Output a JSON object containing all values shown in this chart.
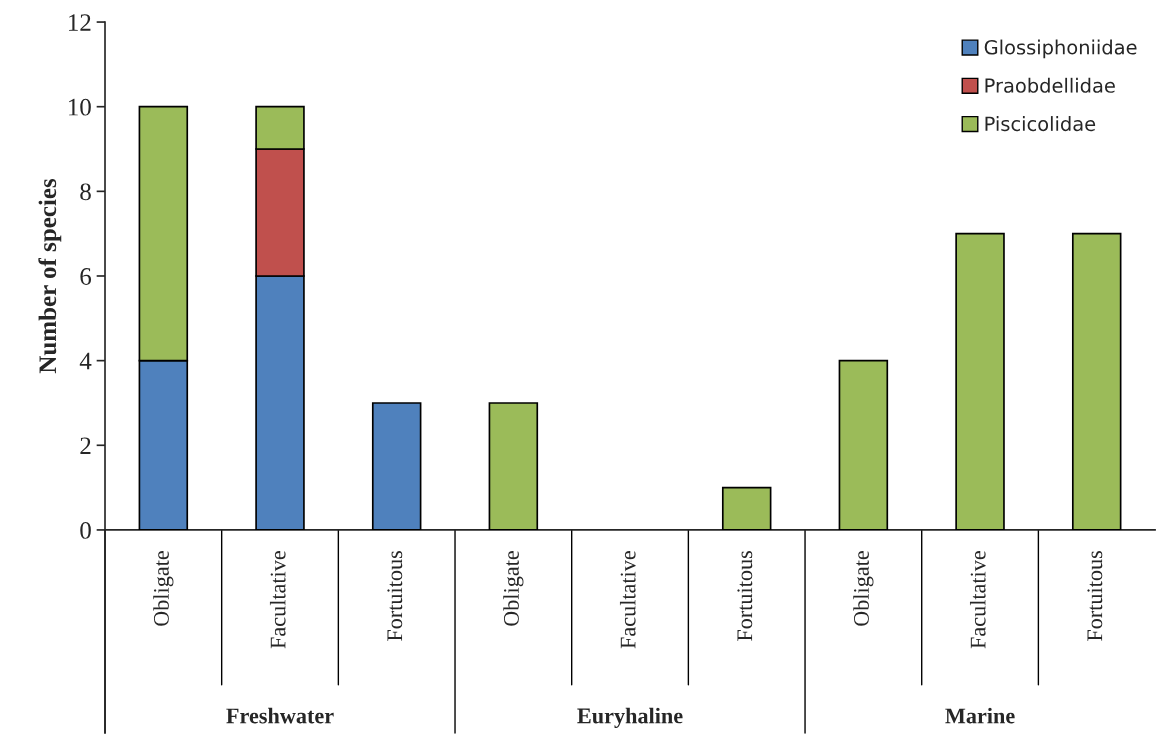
{
  "chart_data": {
    "type": "bar",
    "stacked": true,
    "ylabel": "Number of species",
    "categories": [
      "Obligate",
      "Facultative",
      "Fortuitous",
      "Obligate",
      "Facultative",
      "Fortuitous",
      "Obligate",
      "Facultative",
      "Fortuitous"
    ],
    "annotations": [
      "Freshwater",
      "Euryhaline",
      "Marine"
    ],
    "series": [
      {
        "name": "Glossiphoniidae",
        "color": "#4f81bd",
        "values": [
          4,
          6,
          3,
          null,
          null,
          null,
          null,
          null,
          null
        ]
      },
      {
        "name": "Praobdellidae",
        "color": "#c0504d",
        "values": [
          null,
          3,
          null,
          null,
          null,
          null,
          null,
          null,
          null
        ]
      },
      {
        "name": "Piscicolidae",
        "color": "#9bbb59",
        "values": [
          6,
          1,
          null,
          3,
          null,
          1,
          4,
          7,
          7
        ]
      }
    ],
    "ylim": [
      0,
      12
    ],
    "yticks": [
      0,
      2,
      4,
      6,
      8,
      10,
      12
    ],
    "legend": "top right",
    "grid": false
  }
}
